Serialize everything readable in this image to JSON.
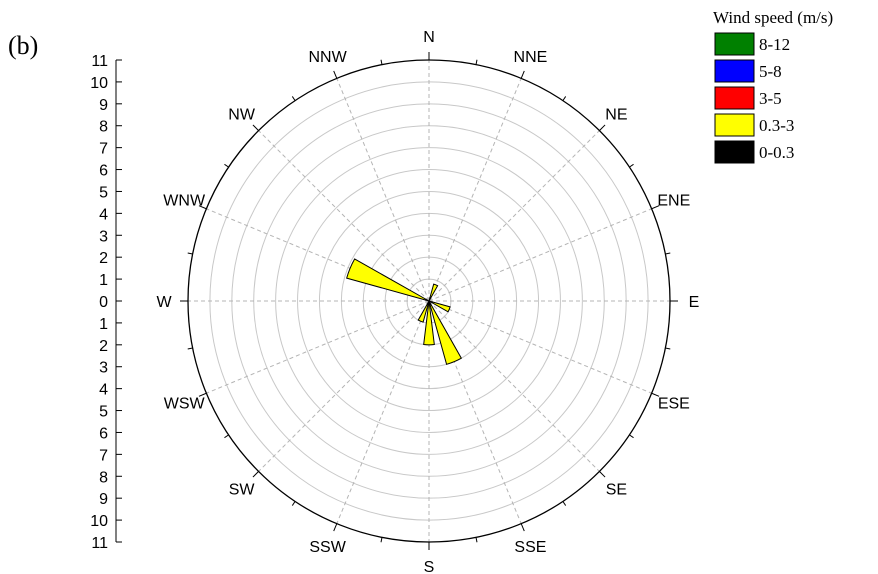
{
  "panel_label": "(b)",
  "chart_data": {
    "type": "wind-rose",
    "directions": [
      "N",
      "NNE",
      "NE",
      "ENE",
      "E",
      "ESE",
      "SE",
      "SSE",
      "S",
      "SSW",
      "SW",
      "WSW",
      "W",
      "WNW",
      "NW",
      "NNW"
    ],
    "radial_axis": {
      "min": 0,
      "max": 11,
      "step": 1,
      "ticks": [
        0,
        1,
        2,
        3,
        4,
        5,
        6,
        7,
        8,
        9,
        10,
        11
      ]
    },
    "grid": true,
    "legend": {
      "title": "Wind speed (m/s)",
      "placement": "top-right",
      "entries": [
        {
          "label": "8-12",
          "color": "#008000"
        },
        {
          "label": "5-8",
          "color": "#0000ff"
        },
        {
          "label": "3-5",
          "color": "#ff0000"
        },
        {
          "label": "0.3-3",
          "color": "#ffff00"
        },
        {
          "label": "0-0.3",
          "color": "#000000"
        }
      ]
    },
    "series": [
      {
        "name": "0.3-3",
        "color": "#ffff00",
        "values": {
          "N": 0,
          "NNE": 0.8,
          "NE": 0,
          "ENE": 0,
          "E": 0,
          "ESE": 1.0,
          "SE": 0,
          "SSE": 3.0,
          "S": 2.0,
          "SSW": 1.0,
          "SW": 0,
          "WSW": 0,
          "W": 0,
          "WNW": 3.9,
          "NW": 0,
          "NNW": 0
        }
      }
    ]
  }
}
